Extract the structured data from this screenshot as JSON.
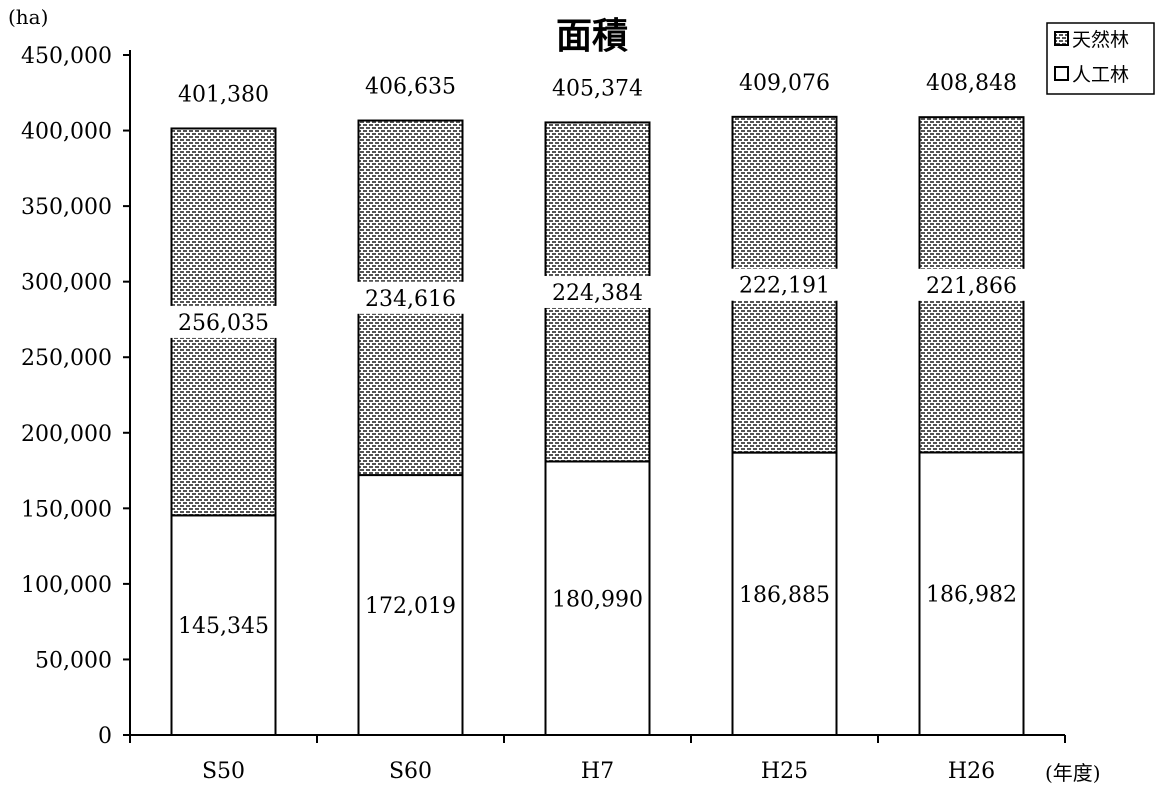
{
  "chart_data": {
    "type": "bar",
    "stacked": true,
    "title": "面積",
    "ylabel": "(ha)",
    "xlabel": "(年度)",
    "categories": [
      "S50",
      "S60",
      "H7",
      "H25",
      "H26"
    ],
    "series": [
      {
        "name": "人工林",
        "values": [
          145345,
          172019,
          180990,
          186885,
          186982
        ],
        "fill": "white"
      },
      {
        "name": "天然林",
        "values": [
          256035,
          234616,
          224384,
          222191,
          221866
        ],
        "fill": "dotted-pattern"
      }
    ],
    "totals": [
      401380,
      406635,
      405374,
      409076,
      408848
    ],
    "total_labels": [
      "401,380",
      "406,635",
      "405,374",
      "409,076",
      "408,848"
    ],
    "natural_labels": [
      "256,035",
      "234,616",
      "224,384",
      "222,191",
      "221,866"
    ],
    "planted_labels": [
      "145,345",
      "172,019",
      "180,990",
      "186,885",
      "186,982"
    ],
    "yticks": [
      0,
      50000,
      100000,
      150000,
      200000,
      250000,
      300000,
      350000,
      400000,
      450000
    ],
    "ytick_labels": [
      "0",
      "50,000",
      "100,000",
      "150,000",
      "200,000",
      "250,000",
      "300,000",
      "350,000",
      "400,000",
      "450,000"
    ],
    "ylim": [
      0,
      450000
    ],
    "grid": false,
    "legend_position": "top-right",
    "colors": {
      "planted": "#ffffff",
      "natural_bg": "#ffffff",
      "natural_dots": "#4a4a4a",
      "stroke": "#000000"
    }
  }
}
